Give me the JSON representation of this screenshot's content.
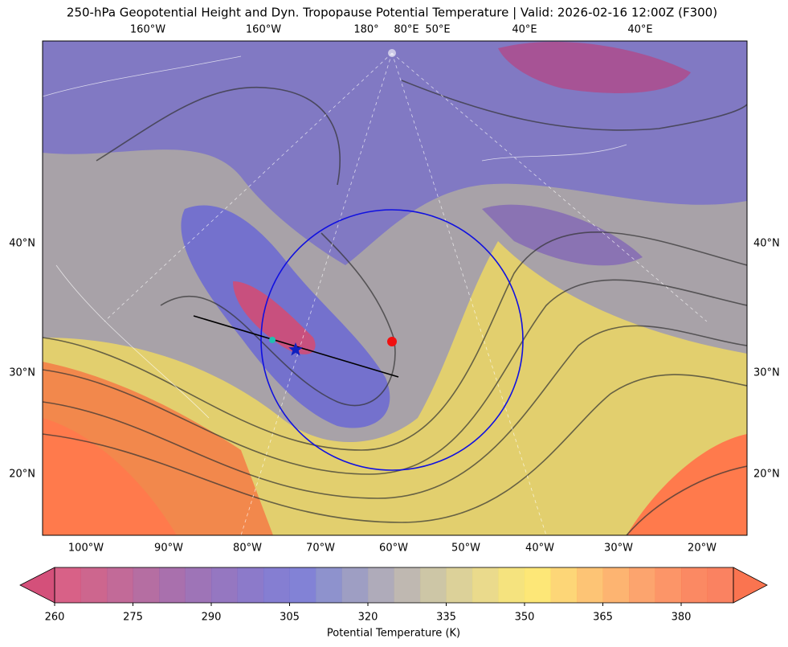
{
  "title": "250-hPa Geopotential Height and Dyn. Tropopause Potential Temperature   |  Valid: 2026-02-16 12:00Z (F300)",
  "top_labels": [
    "160°W",
    "160°W",
    "180°",
    "80°E",
    "50°E",
    "40°E",
    "40°E"
  ],
  "left_labels": [
    "40°N",
    "30°N",
    "20°N"
  ],
  "right_labels": [
    "40°N",
    "30°N",
    "20°N"
  ],
  "bottom_labels": [
    "100°W",
    "90°W",
    "80°W",
    "70°W",
    "60°W",
    "50°W",
    "40°W",
    "30°W",
    "20°W"
  ],
  "colorbar": {
    "label": "Potential Temperature (K)",
    "lim": [
      260,
      390
    ],
    "ticks": [
      260,
      275,
      290,
      305,
      320,
      335,
      350,
      365,
      380
    ],
    "colors": [
      "#d4507a",
      "#c85582",
      "#bb5a8d",
      "#ad5e98",
      "#a061a4",
      "#9465af",
      "#8a68ba",
      "#806cc4",
      "#7870cd",
      "#7474d2",
      "#8286c8",
      "#9494bd",
      "#a6a2b2",
      "#b8b0a8",
      "#c8c09c",
      "#d8cc8e",
      "#e8d680",
      "#f4e070",
      "#fde468",
      "#fdd268",
      "#fdbe66",
      "#fdac62",
      "#fc9a5e",
      "#fc8a58",
      "#fb7c52",
      "#fa7450"
    ]
  }
}
